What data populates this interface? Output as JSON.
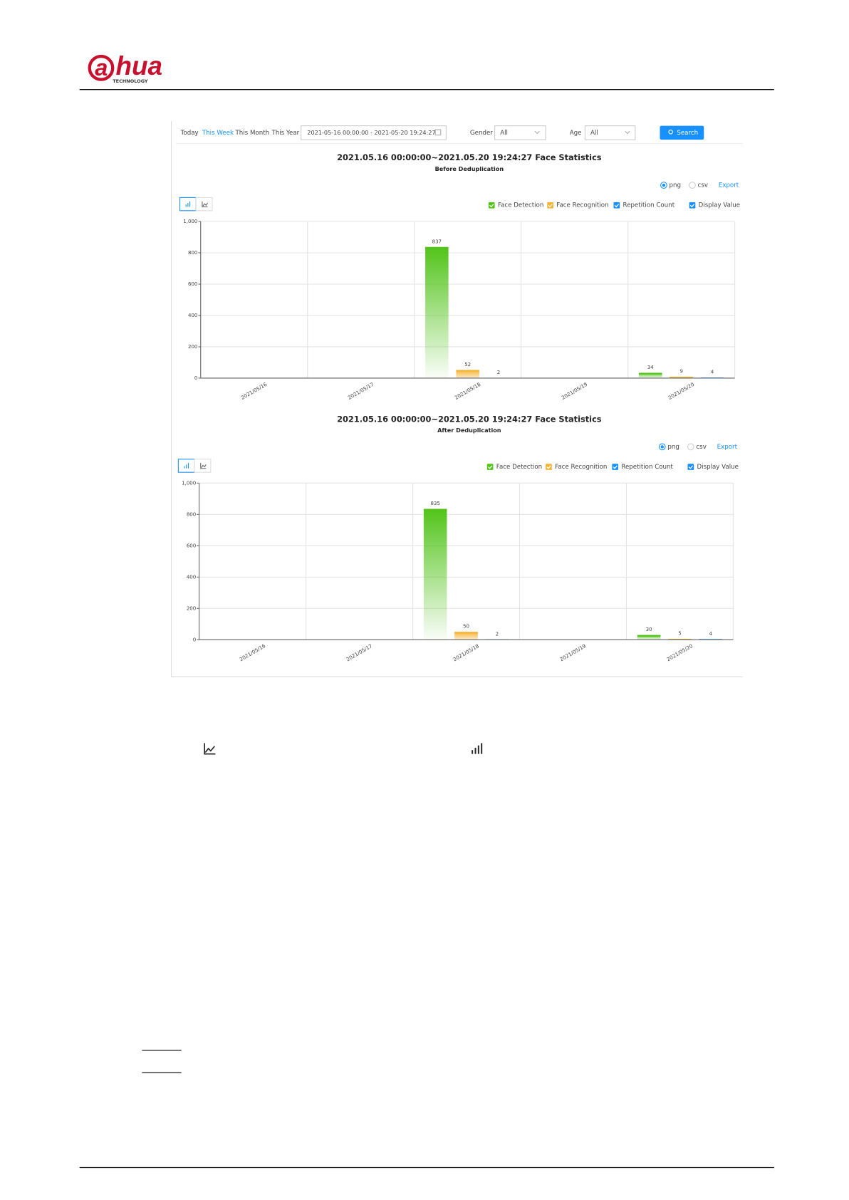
{
  "header": {
    "logo_mark": "a",
    "logo_text": "hua",
    "tagline": "TECHNOLOGY"
  },
  "toolbar": {
    "ranges": [
      "Today",
      "This Week",
      "This Month",
      "This Year"
    ],
    "date_range": "2021-05-16 00:00:00 - 2021-05-20 19:24:27",
    "gender_label": "Gender",
    "gender": "All",
    "age_label": "Age",
    "age": "All",
    "search": "Search"
  },
  "chart_data": [
    {
      "type": "bar",
      "title": "2021.05.16 00:00:00~2021.05.20 19:24:27 Face Statistics",
      "subtitle": "Before Deduplication",
      "export_options": [
        "png",
        "csv"
      ],
      "export": "Export",
      "display_value": "Display Value",
      "categories": [
        "2021/05/16",
        "2021/05/17",
        "2021/05/18",
        "2021/05/19",
        "2021/05/20"
      ],
      "series": [
        {
          "name": "Face Detection",
          "color": "#52c41a",
          "values": [
            0,
            0,
            837,
            0,
            34
          ]
        },
        {
          "name": "Face Recognition",
          "color": "#f5b333",
          "values": [
            0,
            0,
            52,
            0,
            9
          ]
        },
        {
          "name": "Repetition Count",
          "color": "#1890ff",
          "values": [
            0,
            0,
            2,
            0,
            4
          ]
        }
      ],
      "ylim": [
        0,
        1000
      ],
      "yticks": [
        0,
        200,
        400,
        600,
        800,
        {
          "value": 1000,
          "label": "1,000"
        }
      ],
      "grid": true
    },
    {
      "type": "bar",
      "title": "2021.05.16 00:00:00~2021.05.20 19:24:27 Face Statistics",
      "subtitle": "After Deduplication",
      "export_options": [
        "png",
        "csv"
      ],
      "export": "Export",
      "display_value": "Display Value",
      "categories": [
        "2021/05/16",
        "2021/05/17",
        "2021/05/18",
        "2021/05/19",
        "2021/05/20"
      ],
      "series": [
        {
          "name": "Face Detection",
          "color": "#52c41a",
          "values": [
            0,
            0,
            835,
            0,
            30
          ]
        },
        {
          "name": "Face Recognition",
          "color": "#f5b333",
          "values": [
            0,
            0,
            50,
            0,
            5
          ]
        },
        {
          "name": "Repetition Count",
          "color": "#1890ff",
          "values": [
            0,
            0,
            2,
            0,
            4
          ]
        }
      ],
      "ylim": [
        0,
        1000
      ],
      "yticks": [
        0,
        200,
        400,
        600,
        800,
        {
          "value": 1000,
          "label": "1,000"
        }
      ],
      "grid": true
    }
  ]
}
